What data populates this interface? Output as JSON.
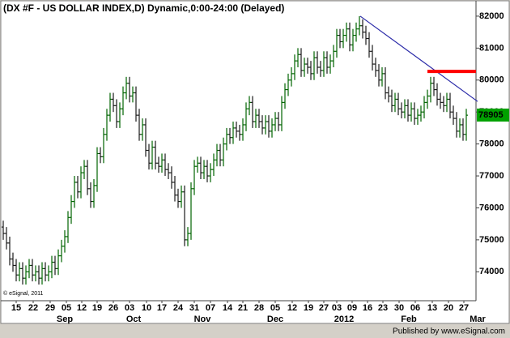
{
  "chart_data": {
    "type": "ohlc",
    "title": "(DX #F - US DOLLAR INDEX,D) Dynamic,0:00-24:00 (Delayed)",
    "up_color": "#006400",
    "down_color": "#1a1a1a",
    "ylim": [
      73120,
      82480
    ],
    "yticks": [
      74000,
      75000,
      76000,
      77000,
      78000,
      79000,
      80000,
      81000,
      82000
    ],
    "xlim": [
      -0.75,
      146
    ],
    "xticks": [
      {
        "value": 4,
        "label": "15"
      },
      {
        "value": 9.25,
        "label": "22"
      },
      {
        "value": 14.5,
        "label": "29"
      },
      {
        "value": 19.5,
        "label": "05"
      },
      {
        "value": 24.25,
        "label": "12"
      },
      {
        "value": 29,
        "label": "19"
      },
      {
        "value": 34,
        "label": "26"
      },
      {
        "value": 39,
        "label": "03"
      },
      {
        "value": 44.25,
        "label": "10"
      },
      {
        "value": 49,
        "label": "17"
      },
      {
        "value": 54,
        "label": "24"
      },
      {
        "value": 59,
        "label": "31"
      },
      {
        "value": 64,
        "label": "07"
      },
      {
        "value": 69.25,
        "label": "14"
      },
      {
        "value": 74,
        "label": "21"
      },
      {
        "value": 79,
        "label": "28"
      },
      {
        "value": 84,
        "label": "05"
      },
      {
        "value": 89.25,
        "label": "12"
      },
      {
        "value": 94.25,
        "label": "19"
      },
      {
        "value": 99,
        "label": "27"
      },
      {
        "value": 103,
        "label": "03"
      },
      {
        "value": 107.75,
        "label": "09"
      },
      {
        "value": 112.5,
        "label": "16"
      },
      {
        "value": 117.25,
        "label": "23"
      },
      {
        "value": 122.25,
        "label": "30"
      },
      {
        "value": 127.25,
        "label": "06"
      },
      {
        "value": 132.5,
        "label": "13"
      },
      {
        "value": 137.5,
        "label": "20"
      },
      {
        "value": 142.25,
        "label": "27"
      }
    ],
    "month_labels": [
      {
        "value": 19,
        "label": "Sep"
      },
      {
        "value": 40.25,
        "label": "Oct"
      },
      {
        "value": 61.5,
        "label": "Nov"
      },
      {
        "value": 84,
        "label": "Dec"
      },
      {
        "value": 105.25,
        "label": "2012"
      },
      {
        "value": 125.25,
        "label": "Feb"
      },
      {
        "value": 146.5,
        "label": "Mar"
      }
    ],
    "open": [
      75400,
      75200,
      74900,
      74400,
      74200,
      73900,
      74100,
      73800,
      74000,
      74200,
      73900,
      74000,
      73800,
      74100,
      73900,
      74000,
      74300,
      74100,
      74500,
      74800,
      75100,
      75700,
      76200,
      76800,
      76500,
      77100,
      77300,
      76600,
      76200,
      76700,
      77700,
      77600,
      78300,
      78900,
      79400,
      79200,
      78700,
      79100,
      79600,
      79900,
      79500,
      79600,
      78900,
      78300,
      78600,
      77800,
      77400,
      77900,
      77400,
      77300,
      77500,
      77200,
      77100,
      76800,
      76400,
      76200,
      76500,
      75000,
      75200,
      76600,
      77300,
      77400,
      77100,
      77300,
      77000,
      77200,
      77500,
      77800,
      77500,
      78000,
      78300,
      78200,
      78500,
      78400,
      78300,
      78600,
      79100,
      79300,
      78700,
      78900,
      78700,
      78500,
      78700,
      78400,
      78600,
      78800,
      78600,
      79300,
      79700,
      80000,
      80200,
      80600,
      80800,
      80300,
      80500,
      80400,
      80200,
      80700,
      80400,
      80300,
      80700,
      80400,
      80600,
      80900,
      81400,
      81200,
      81400,
      81600,
      81100,
      81400,
      81600,
      81700,
      81500,
      81300,
      80900,
      80500,
      80300,
      80000,
      80200,
      79600,
      79500,
      79200,
      79400,
      79100,
      79000,
      79200,
      78900,
      79100,
      78800,
      78900,
      79000,
      79300,
      79500,
      79900,
      79700,
      79400,
      79300,
      79200,
      79400,
      79000,
      78800,
      78400,
      78600,
      78300
    ],
    "high": [
      75600,
      75400,
      75100,
      74600,
      74400,
      74300,
      74300,
      74200,
      74400,
      74400,
      74200,
      74200,
      74300,
      74300,
      74200,
      74500,
      74500,
      74700,
      75000,
      75300,
      75900,
      76400,
      77000,
      77000,
      77300,
      77500,
      77500,
      76800,
      76900,
      77900,
      77900,
      78500,
      79100,
      79600,
      79600,
      79400,
      79300,
      79800,
      80100,
      80100,
      79800,
      79800,
      79100,
      78800,
      78800,
      78000,
      78100,
      78100,
      77600,
      77700,
      77700,
      77400,
      77300,
      77000,
      76600,
      76700,
      76700,
      75400,
      76800,
      77500,
      77600,
      77600,
      77500,
      77500,
      77400,
      77700,
      78000,
      78000,
      78200,
      78500,
      78500,
      78700,
      78700,
      78600,
      78800,
      79300,
      79500,
      79500,
      79100,
      79100,
      78900,
      78900,
      78900,
      78800,
      79000,
      79000,
      79500,
      79900,
      80200,
      80400,
      80800,
      81000,
      81000,
      80700,
      80700,
      80600,
      80900,
      80900,
      80600,
      80900,
      80900,
      80800,
      81100,
      81600,
      81600,
      81600,
      81800,
      81800,
      81600,
      81800,
      82000,
      81900,
      81700,
      81500,
      81100,
      80700,
      80500,
      80400,
      80400,
      79800,
      79700,
      79600,
      79600,
      79300,
      79400,
      79400,
      79300,
      79300,
      79100,
      79200,
      79500,
      79700,
      80100,
      80100,
      79900,
      79600,
      79500,
      79600,
      79600,
      79200,
      79000,
      78800,
      78800,
      79100
    ],
    "low": [
      75000,
      74700,
      74200,
      74000,
      73700,
      73700,
      73600,
      73600,
      73800,
      73700,
      73700,
      73600,
      73600,
      73700,
      73700,
      73800,
      73900,
      73900,
      74300,
      74600,
      74900,
      75500,
      76000,
      76300,
      76300,
      76900,
      76400,
      76000,
      76000,
      76500,
      77400,
      77400,
      78100,
      78700,
      79000,
      78500,
      78500,
      78900,
      79400,
      79300,
      79300,
      78700,
      78100,
      78100,
      77600,
      77200,
      77200,
      77200,
      77100,
      77100,
      77000,
      76900,
      76600,
      76200,
      76000,
      76000,
      74800,
      74800,
      75000,
      76400,
      77100,
      76900,
      76900,
      76800,
      76800,
      77000,
      77300,
      77300,
      77300,
      77800,
      78000,
      78000,
      78200,
      78100,
      78100,
      78400,
      78900,
      78500,
      78500,
      78500,
      78300,
      78300,
      78200,
      78200,
      78400,
      78400,
      78400,
      79100,
      79500,
      79800,
      80000,
      80400,
      80100,
      80100,
      80200,
      80000,
      80000,
      80200,
      80100,
      80100,
      80200,
      80200,
      80400,
      80700,
      81000,
      81000,
      81200,
      80900,
      80900,
      81200,
      81400,
      81300,
      81100,
      80700,
      80300,
      80100,
      79800,
      79800,
      79400,
      79300,
      79000,
      79000,
      78900,
      78800,
      78800,
      78700,
      78700,
      78600,
      78600,
      78700,
      78800,
      79100,
      79300,
      79500,
      79200,
      79100,
      79000,
      79000,
      78800,
      78600,
      78200,
      78200,
      78100,
      78100
    ],
    "close": [
      75200,
      74900,
      74400,
      74200,
      73900,
      74100,
      73800,
      74000,
      74200,
      73900,
      74000,
      73800,
      74100,
      73900,
      74000,
      74300,
      74100,
      74500,
      74800,
      75100,
      75700,
      76200,
      76800,
      76500,
      77100,
      77300,
      76600,
      76200,
      76700,
      77700,
      77600,
      78300,
      78900,
      79400,
      79200,
      78700,
      79100,
      79600,
      79900,
      79500,
      79600,
      78900,
      78300,
      78600,
      77800,
      77400,
      77900,
      77400,
      77300,
      77500,
      77200,
      77100,
      76800,
      76400,
      76200,
      76500,
      75000,
      75200,
      76600,
      77300,
      77400,
      77100,
      77300,
      77000,
      77200,
      77500,
      77800,
      77500,
      78000,
      78300,
      78200,
      78500,
      78400,
      78300,
      78600,
      79100,
      79300,
      78700,
      78900,
      78700,
      78500,
      78700,
      78400,
      78600,
      78800,
      78600,
      79300,
      79700,
      80000,
      80200,
      80600,
      80800,
      80300,
      80500,
      80400,
      80200,
      80700,
      80400,
      80300,
      80700,
      80400,
      80600,
      80900,
      81400,
      81200,
      81400,
      81600,
      81100,
      81400,
      81600,
      81700,
      81500,
      81300,
      80900,
      80500,
      80300,
      80000,
      80200,
      79600,
      79500,
      79200,
      79400,
      79100,
      79000,
      79200,
      78900,
      79100,
      78800,
      78900,
      79000,
      79300,
      79500,
      79900,
      79700,
      79400,
      79300,
      79200,
      79400,
      79000,
      78800,
      78400,
      78600,
      78300,
      78900
    ],
    "trendline": {
      "color": "#2a2aa8",
      "x": [
        110.25,
        146.5
      ],
      "y": [
        82000,
        79330
      ]
    },
    "level_line": {
      "color": "#ff0000",
      "x": [
        131,
        146
      ],
      "value": 80270
    },
    "last_price": {
      "value": 78905,
      "color": "#00a000"
    },
    "watermark": "© eSignal, 2011",
    "footer": "Published by www.eSignal.com"
  }
}
